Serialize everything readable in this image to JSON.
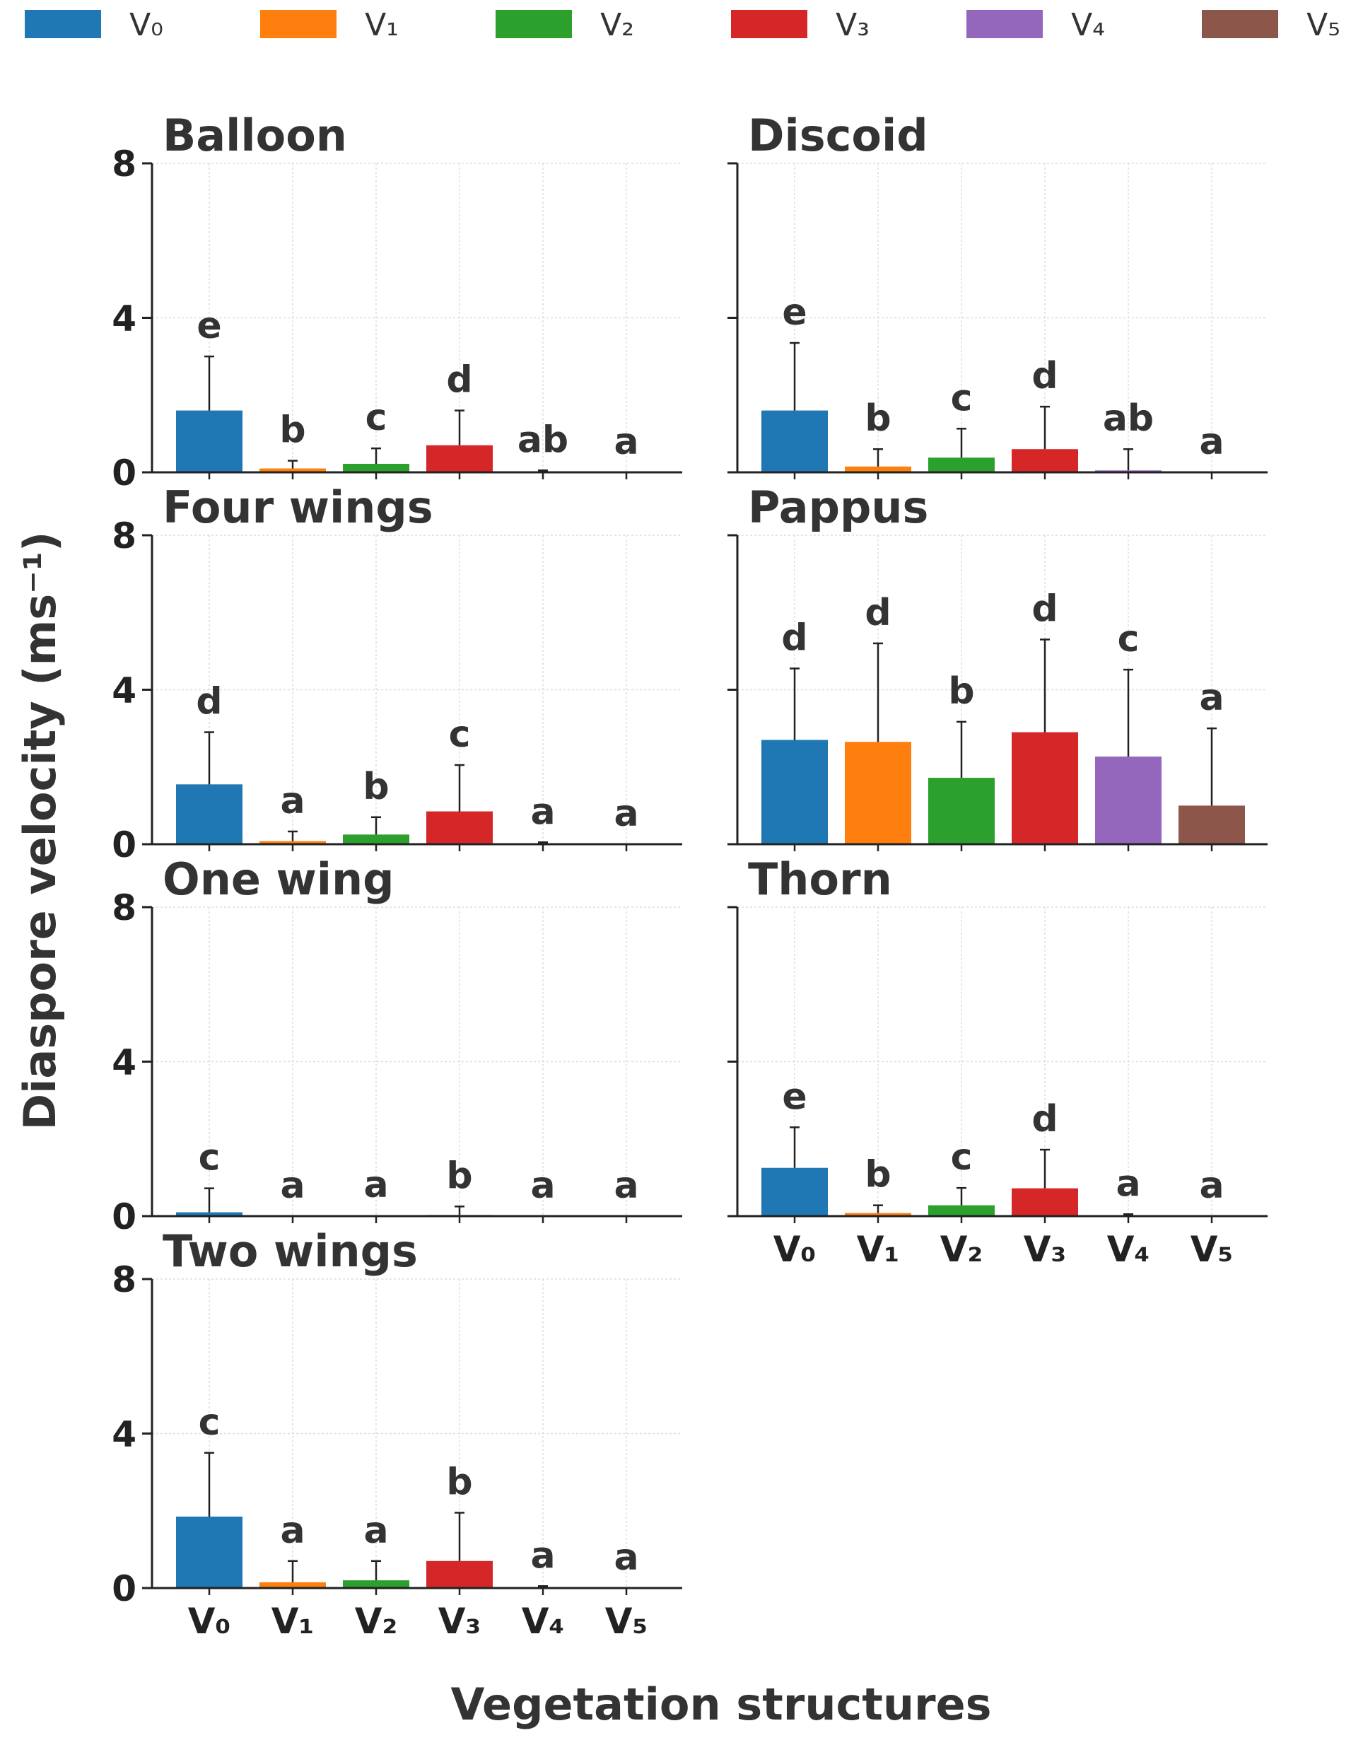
{
  "chart_data": {
    "type": "bar",
    "ylabel": "Diaspore velocity (ms⁻¹)",
    "xlabel": "Vegetation structures",
    "ylim": [
      0,
      8
    ],
    "yticks": [
      "0",
      "4",
      "8"
    ],
    "categories": [
      "V₀",
      "V₁",
      "V₂",
      "V₃",
      "V₄",
      "V₅"
    ],
    "legend": {
      "placement": "top",
      "entries": [
        {
          "label": "V₀",
          "color": "#1f77b4"
        },
        {
          "label": "V₁",
          "color": "#ff7f0e"
        },
        {
          "label": "V₂",
          "color": "#2ca02c"
        },
        {
          "label": "V₃",
          "color": "#d62728"
        },
        {
          "label": "V₄",
          "color": "#9467bd"
        },
        {
          "label": "V₅",
          "color": "#8c564b"
        }
      ]
    },
    "grid": true,
    "panels": [
      {
        "title": "Balloon",
        "values": [
          1.6,
          0.1,
          0.22,
          0.7,
          0.0,
          0.0
        ],
        "errors": [
          1.4,
          0.2,
          0.4,
          0.9,
          0.05,
          0.0
        ],
        "labels": [
          "e",
          "b",
          "c",
          "d",
          "ab",
          "a"
        ]
      },
      {
        "title": "Discoid",
        "values": [
          1.6,
          0.15,
          0.38,
          0.6,
          0.05,
          0.0
        ],
        "errors": [
          1.75,
          0.45,
          0.75,
          1.1,
          0.55,
          0.0
        ],
        "labels": [
          "e",
          "b",
          "c",
          "d",
          "ab",
          "a"
        ]
      },
      {
        "title": "Four wings",
        "values": [
          1.55,
          0.08,
          0.25,
          0.85,
          0.0,
          0.0
        ],
        "errors": [
          1.35,
          0.25,
          0.45,
          1.2,
          0.05,
          0.0
        ],
        "labels": [
          "d",
          "a",
          "b",
          "c",
          "a",
          "a"
        ]
      },
      {
        "title": "Pappus",
        "values": [
          2.7,
          2.65,
          1.72,
          2.9,
          2.27,
          1.0
        ],
        "errors": [
          1.85,
          2.55,
          1.45,
          2.4,
          2.25,
          2.0
        ],
        "labels": [
          "d",
          "d",
          "b",
          "d",
          "c",
          "a"
        ]
      },
      {
        "title": "One wing",
        "values": [
          0.1,
          0.0,
          0.02,
          0.03,
          0.0,
          0.0
        ],
        "errors": [
          0.62,
          0.0,
          0.0,
          0.22,
          0.0,
          0.0
        ],
        "labels": [
          "c",
          "a",
          "a",
          "b",
          "a",
          "a"
        ]
      },
      {
        "title": "Thorn",
        "values": [
          1.25,
          0.08,
          0.28,
          0.72,
          0.0,
          0.0
        ],
        "errors": [
          1.05,
          0.2,
          0.45,
          1.0,
          0.05,
          0.0
        ],
        "labels": [
          "e",
          "b",
          "c",
          "d",
          "a",
          "a"
        ]
      },
      {
        "title": "Two wings",
        "values": [
          1.85,
          0.15,
          0.2,
          0.7,
          0.0,
          0.0
        ],
        "errors": [
          1.65,
          0.55,
          0.5,
          1.25,
          0.05,
          0.0
        ],
        "labels": [
          "c",
          "a",
          "a",
          "b",
          "a",
          "a"
        ]
      }
    ]
  }
}
